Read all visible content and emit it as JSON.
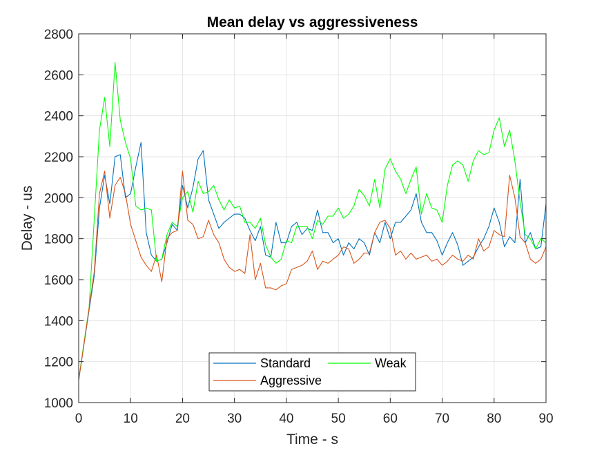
{
  "chart_data": {
    "type": "line",
    "title": "Mean delay vs aggressiveness",
    "xlabel": "Time - s",
    "ylabel": "Delay - us",
    "xlim": [
      0,
      90
    ],
    "ylim": [
      1000,
      2800
    ],
    "xticks": [
      "0",
      "10",
      "20",
      "30",
      "40",
      "50",
      "60",
      "70",
      "80",
      "90"
    ],
    "yticks": [
      "1000",
      "1200",
      "1400",
      "1600",
      "1800",
      "2000",
      "2200",
      "2400",
      "2600",
      "2800"
    ],
    "grid": true,
    "legend": {
      "placement": "bottom-center",
      "columns": 2
    },
    "colors": {
      "axis": "#262626",
      "grid": "#e5e5e5",
      "plot_bg": "#ffffff"
    },
    "x": [
      0,
      1,
      2,
      3,
      4,
      5,
      6,
      7,
      8,
      9,
      10,
      11,
      12,
      13,
      14,
      15,
      16,
      17,
      18,
      19,
      20,
      21,
      22,
      23,
      24,
      25,
      26,
      27,
      28,
      29,
      30,
      31,
      32,
      33,
      34,
      35,
      36,
      37,
      38,
      39,
      40,
      41,
      42,
      43,
      44,
      45,
      46,
      47,
      48,
      49,
      50,
      51,
      52,
      53,
      54,
      55,
      56,
      57,
      58,
      59,
      60,
      61,
      62,
      63,
      64,
      65,
      66,
      67,
      68,
      69,
      70,
      71,
      72,
      73,
      74,
      75,
      76,
      77,
      78,
      79,
      80,
      81,
      82,
      83,
      84,
      85,
      86,
      87,
      88,
      89,
      90
    ],
    "series": [
      {
        "name": "Standard",
        "color": "#0072bd",
        "values": [
          1110,
          1280,
          1450,
          1620,
          1950,
          2110,
          1970,
          2200,
          2210,
          2000,
          2020,
          2150,
          2270,
          1830,
          1720,
          1690,
          1700,
          1780,
          1870,
          1840,
          2060,
          1950,
          2050,
          2190,
          2230,
          1990,
          1920,
          1850,
          1880,
          1900,
          1920,
          1920,
          1900,
          1840,
          1790,
          1860,
          1720,
          1710,
          1880,
          1780,
          1780,
          1860,
          1880,
          1820,
          1850,
          1840,
          1940,
          1830,
          1830,
          1780,
          1800,
          1720,
          1780,
          1750,
          1800,
          1780,
          1720,
          1830,
          1780,
          1880,
          1800,
          1880,
          1880,
          1910,
          1940,
          2020,
          1880,
          1830,
          1830,
          1790,
          1720,
          1780,
          1830,
          1770,
          1670,
          1690,
          1710,
          1760,
          1800,
          1860,
          1950,
          1880,
          1760,
          1810,
          1780,
          2090,
          1780,
          1830,
          1750,
          1760,
          1970
        ]
      },
      {
        "name": "Weak",
        "color": "#00ff00",
        "values": [
          1110,
          1290,
          1460,
          1900,
          2330,
          2490,
          2250,
          2660,
          2380,
          2270,
          2190,
          1960,
          1940,
          1950,
          1940,
          1690,
          1700,
          1820,
          1880,
          1860,
          2000,
          2030,
          1930,
          2080,
          2020,
          2030,
          2060,
          1990,
          1940,
          1990,
          1950,
          1960,
          1880,
          1880,
          1850,
          1900,
          1770,
          1710,
          1680,
          1700,
          1790,
          1780,
          1860,
          1860,
          1860,
          1800,
          1890,
          1870,
          1910,
          1910,
          1950,
          1900,
          1920,
          1960,
          2040,
          2010,
          1960,
          2090,
          1950,
          2140,
          2190,
          2130,
          2090,
          2020,
          2090,
          2150,
          1920,
          2020,
          1950,
          1940,
          1880,
          2060,
          2160,
          2180,
          2160,
          2080,
          2180,
          2230,
          2210,
          2220,
          2330,
          2390,
          2250,
          2330,
          2180,
          1980,
          1820,
          1800,
          1750,
          1800,
          1780
        ]
      },
      {
        "name": "Aggressive",
        "color": "#d95319",
        "values": [
          1110,
          1280,
          1460,
          1640,
          2020,
          2130,
          1900,
          2060,
          2100,
          2020,
          1870,
          1790,
          1710,
          1670,
          1640,
          1720,
          1590,
          1800,
          1830,
          1840,
          2130,
          1890,
          1870,
          1800,
          1810,
          1890,
          1820,
          1780,
          1700,
          1660,
          1640,
          1650,
          1630,
          1820,
          1600,
          1680,
          1560,
          1560,
          1550,
          1570,
          1580,
          1650,
          1660,
          1670,
          1690,
          1740,
          1650,
          1690,
          1680,
          1700,
          1720,
          1760,
          1750,
          1680,
          1700,
          1730,
          1730,
          1830,
          1880,
          1890,
          1850,
          1720,
          1740,
          1700,
          1730,
          1700,
          1710,
          1720,
          1690,
          1700,
          1670,
          1690,
          1720,
          1700,
          1690,
          1720,
          1700,
          1800,
          1740,
          1760,
          1840,
          1820,
          1810,
          2110,
          2000,
          1810,
          1780,
          1700,
          1680,
          1700,
          1760
        ]
      }
    ]
  }
}
